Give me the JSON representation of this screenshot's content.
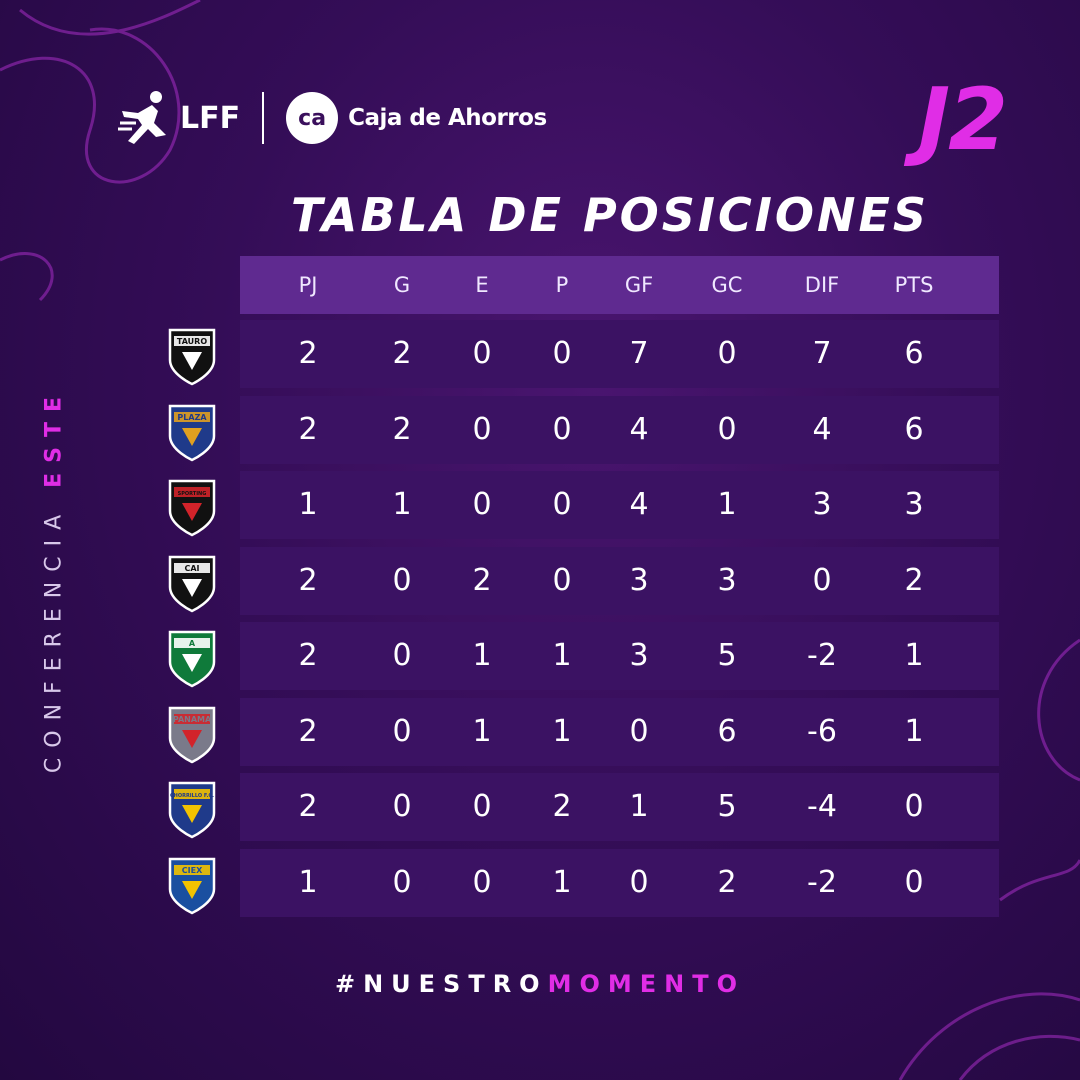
{
  "brand": {
    "lff": "LFF",
    "sponsor": "Caja de Ahorros",
    "sponsor_mark": "ca"
  },
  "jornada": "J2",
  "title": "TABLA DE POSICIONES",
  "side_label": {
    "prefix": "CONFERENCIA ",
    "accent": "ESTE"
  },
  "columns": [
    "PJ",
    "G",
    "E",
    "P",
    "GF",
    "GC",
    "DIF",
    "PTS"
  ],
  "rows": [
    {
      "team": "TAURO",
      "cells": [
        "2",
        "2",
        "0",
        "0",
        "7",
        "0",
        "7",
        "6"
      ]
    },
    {
      "team": "PLAZA",
      "cells": [
        "2",
        "2",
        "0",
        "0",
        "4",
        "0",
        "4",
        "6"
      ]
    },
    {
      "team": "SPORTING",
      "cells": [
        "1",
        "1",
        "0",
        "0",
        "4",
        "1",
        "3",
        "3"
      ]
    },
    {
      "team": "CAI",
      "cells": [
        "2",
        "0",
        "2",
        "0",
        "3",
        "3",
        "0",
        "2"
      ]
    },
    {
      "team": "A",
      "cells": [
        "2",
        "0",
        "1",
        "1",
        "3",
        "5",
        "-2",
        "1"
      ]
    },
    {
      "team": "PANAMA",
      "cells": [
        "2",
        "0",
        "1",
        "1",
        "0",
        "6",
        "-6",
        "1"
      ]
    },
    {
      "team": "CHORRILLO F.C.",
      "cells": [
        "2",
        "0",
        "0",
        "2",
        "1",
        "5",
        "-4",
        "0"
      ]
    },
    {
      "team": "CIEX",
      "cells": [
        "1",
        "0",
        "0",
        "1",
        "0",
        "2",
        "-2",
        "0"
      ]
    }
  ],
  "footer": {
    "prefix": "#NUESTRO",
    "accent": "MOMENTO"
  },
  "colors": {
    "accent": "#e02de6",
    "row_bg": "#3b1263",
    "header_bg": "#5f2a90"
  }
}
